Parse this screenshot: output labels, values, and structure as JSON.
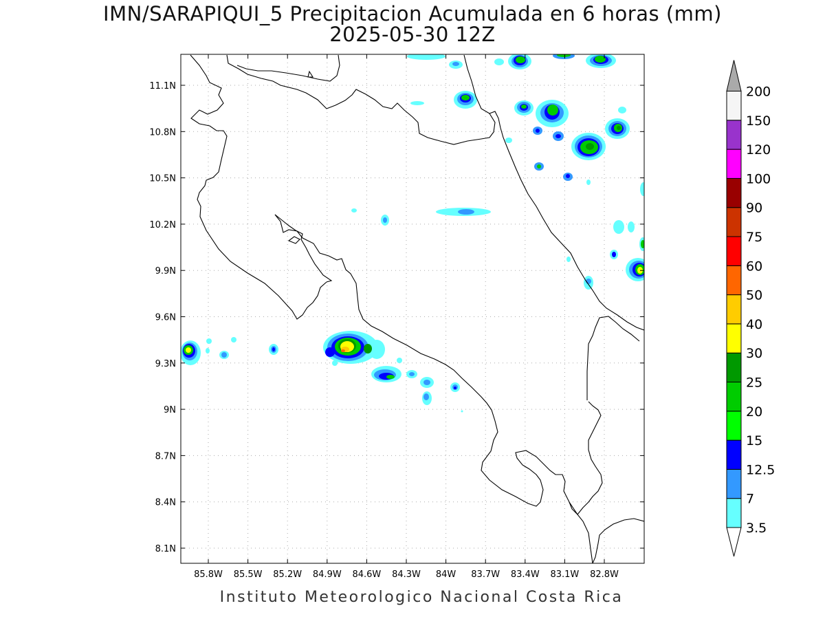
{
  "title_line1": "IMN/SARAPIQUI_5 Precipitacion Acumulada en 6 horas (mm)",
  "title_line2": "2025-05-30 12Z",
  "footer": "Instituto Meteorologico Nacional Costa Rica",
  "lat_ticks": [
    "11.1N",
    "10.8N",
    "10.5N",
    "10.2N",
    "9.9N",
    "9.6N",
    "9.3N",
    "9N",
    "8.7N",
    "8.4N",
    "8.1N"
  ],
  "lon_ticks": [
    "85.8W",
    "85.5W",
    "85.2W",
    "84.9W",
    "84.6W",
    "84.3W",
    "84W",
    "83.7W",
    "83.4W",
    "83.1W",
    "82.8W"
  ],
  "colorbar": {
    "levels": [
      "3.5",
      "7",
      "12.5",
      "15",
      "20",
      "25",
      "30",
      "40",
      "50",
      "60",
      "75",
      "90",
      "100",
      "120",
      "150",
      "200"
    ],
    "colors": [
      "#66ffff",
      "#3399ff",
      "#0000ff",
      "#00ff00",
      "#00cc00",
      "#009900",
      "#ffff00",
      "#ffcc00",
      "#ff6600",
      "#ff0000",
      "#cc3300",
      "#990000",
      "#ff00ff",
      "#9933cc",
      "#f5f5f5",
      "#aaaaaa"
    ],
    "top_arrow_color": "#aaaaaa",
    "bottom_arrow_color": "#ffffff"
  },
  "grid": true
}
